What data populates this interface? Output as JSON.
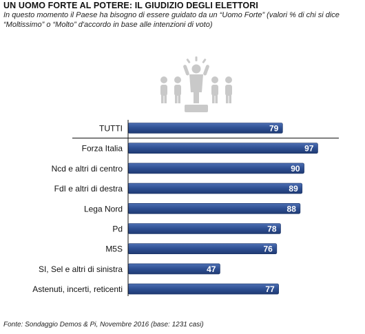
{
  "header": {
    "title": "UN UOMO FORTE AL POTERE: IL GIUDIZIO DEGLI ELETTORI",
    "subtitle": "In questo momento il Paese ha bisogno di essere guidato da un “Uomo Forte” (valori % di chi si dice “Moltissimo” o “Molto” d'accordo in base alle intenzioni di voto)"
  },
  "illustration": {
    "icon": "strong-leader-crowd-icon"
  },
  "chart_data": {
    "type": "bar",
    "orientation": "horizontal",
    "categories": [
      "TUTTI",
      "Forza Italia",
      "Ncd e altri di centro",
      "FdI e altri di destra",
      "Lega Nord",
      "Pd",
      "M5S",
      "SI, Sel e altri di sinistra",
      "Astenuti, incerti, reticenti"
    ],
    "values": [
      79,
      97,
      90,
      89,
      88,
      78,
      76,
      47,
      77
    ],
    "xlim": [
      0,
      100
    ],
    "grid": false,
    "legend": "none",
    "bar_color": "#2e4f92"
  },
  "footer": {
    "source": "Fonte: Sondaggio Demos & Pi, Novembre 2016 (base: 1231 casi)"
  }
}
